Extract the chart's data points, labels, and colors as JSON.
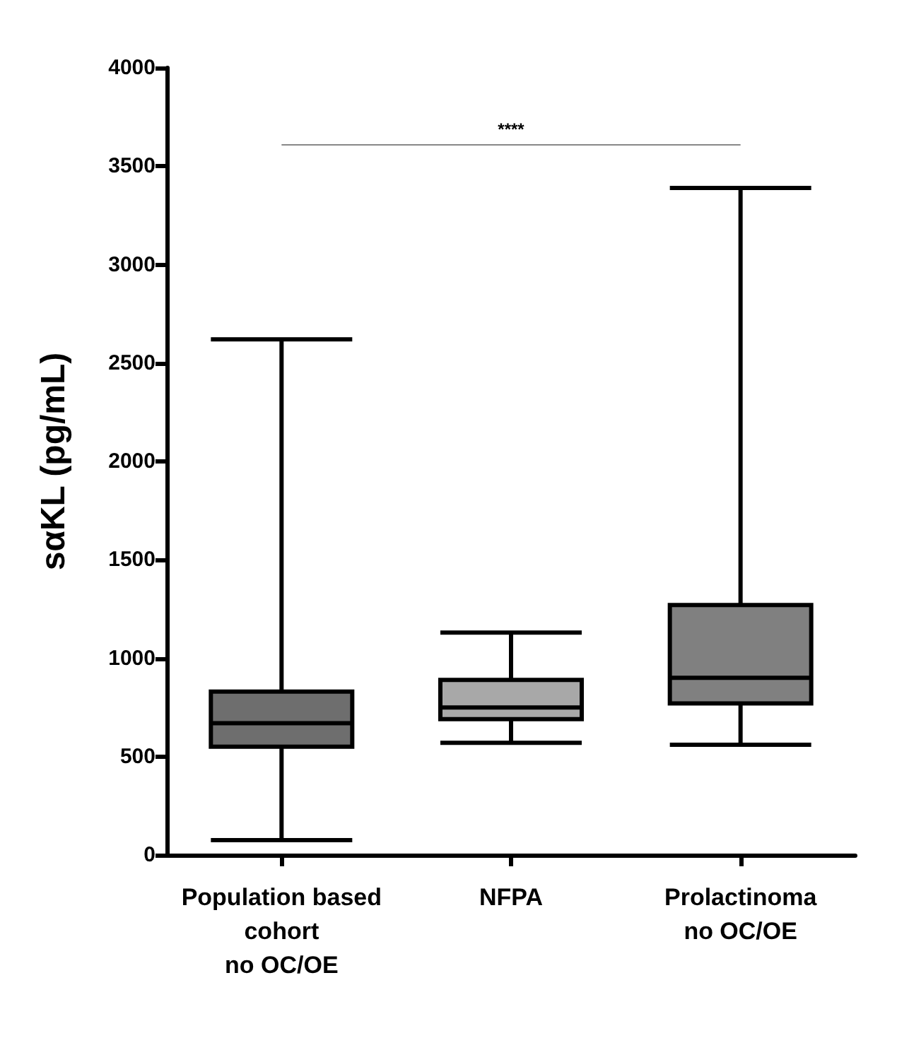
{
  "chart_data": {
    "type": "box",
    "ylabel": "sαKL (pg/mL)",
    "categories": [
      "Population based\ncohort\nno OC/OE",
      "NFPA",
      "Prolactinoma\nno OC/OE"
    ],
    "boxes": [
      {
        "low": 75,
        "q1": 550,
        "median": 670,
        "q3": 830,
        "high": 2620
      },
      {
        "low": 570,
        "q1": 690,
        "median": 750,
        "q3": 890,
        "high": 1130
      },
      {
        "low": 560,
        "q1": 770,
        "median": 900,
        "q3": 1270,
        "high": 3390
      }
    ],
    "colors": [
      "#6e6e6e",
      "#a8a8a8",
      "#808080"
    ],
    "ylim": [
      0,
      4000
    ],
    "yticks": [
      0,
      500,
      1000,
      1500,
      2000,
      2500,
      3000,
      3500,
      4000
    ],
    "grid": false,
    "ref_lines": [
      {
        "axis": "y",
        "value": 3610,
        "label": "****",
        "color": "#888888"
      }
    ]
  }
}
